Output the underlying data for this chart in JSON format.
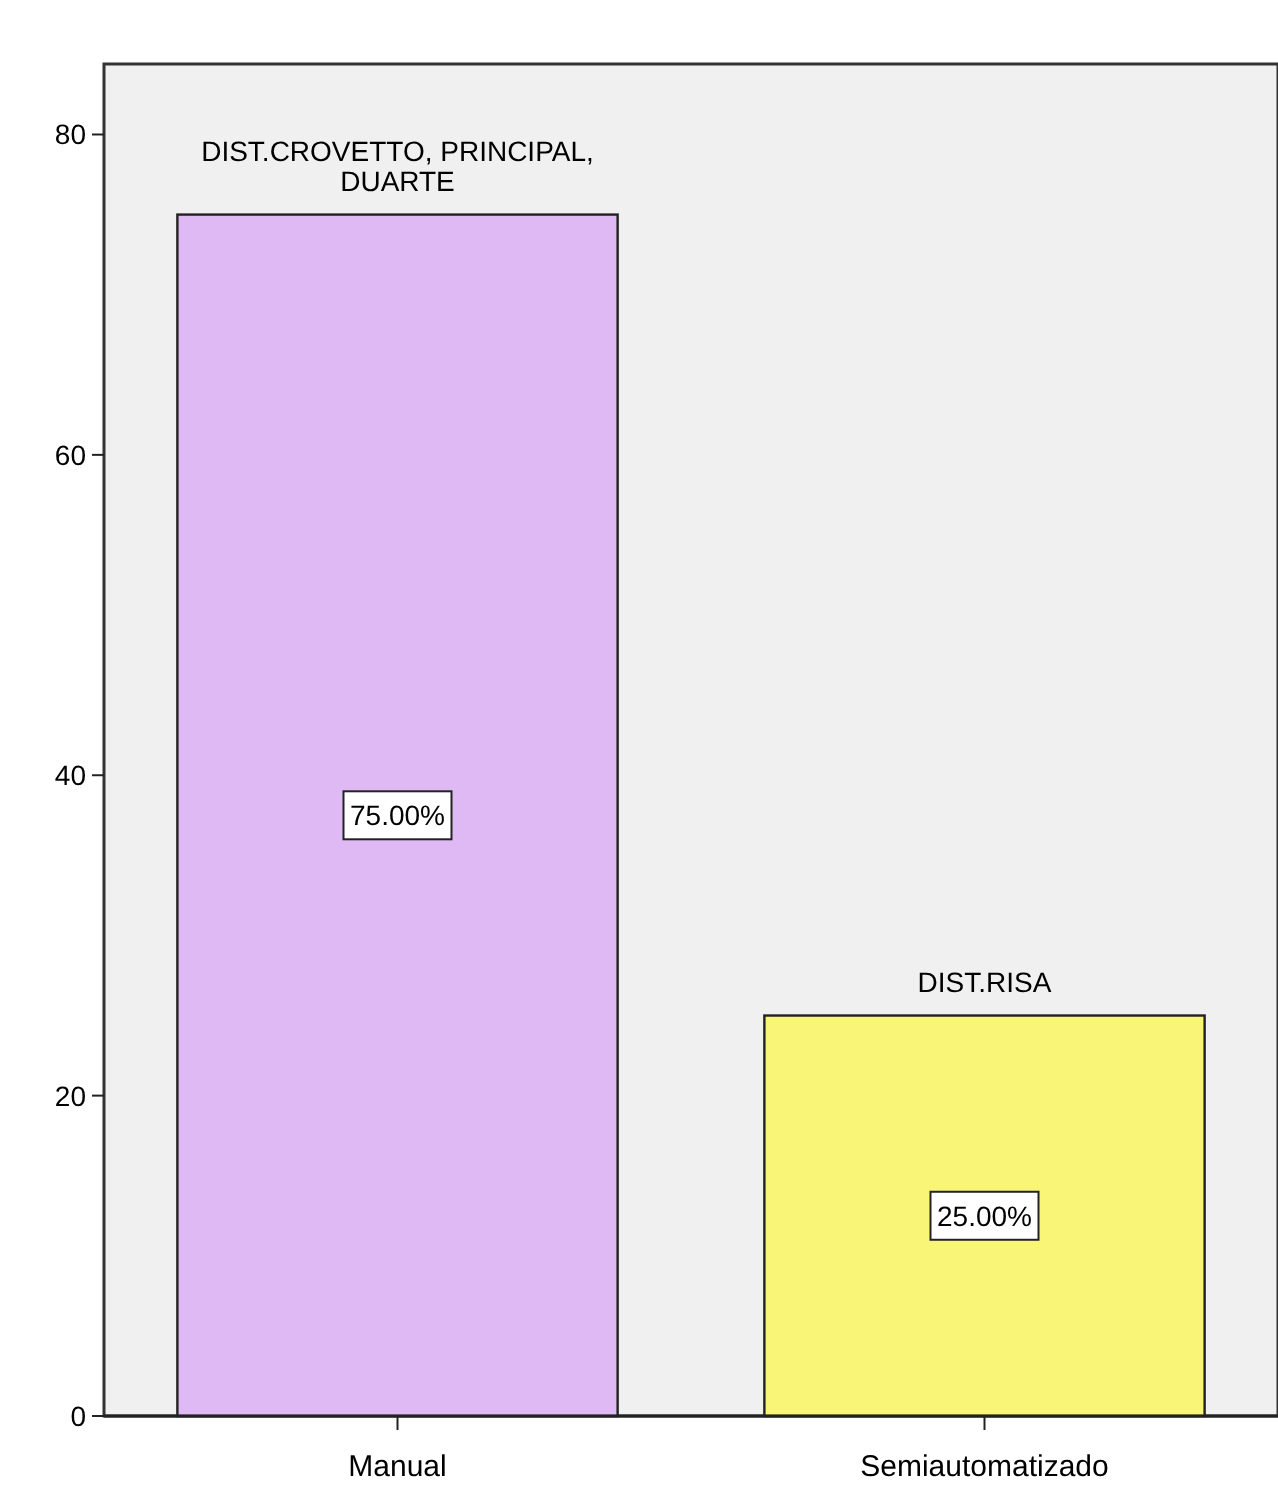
{
  "chart_data": {
    "type": "bar",
    "categories": [
      "Manual",
      "Semiautomatizado"
    ],
    "values": [
      75,
      25
    ],
    "colors": [
      "#dfb9f3",
      "#f9f577"
    ],
    "value_labels": [
      "75.00%",
      "25.00%"
    ],
    "ylim": [
      0,
      84.4
    ],
    "yticks": [
      0,
      20,
      40,
      60,
      80
    ],
    "grid": false,
    "annotations": [
      {
        "text": "DIST.CROVETTO, PRINCIPAL, DUARTE",
        "x": "Manual",
        "y": 75
      },
      {
        "text": "DIST.RISA",
        "x": "Semiautomatizado",
        "y": 25
      }
    ]
  }
}
